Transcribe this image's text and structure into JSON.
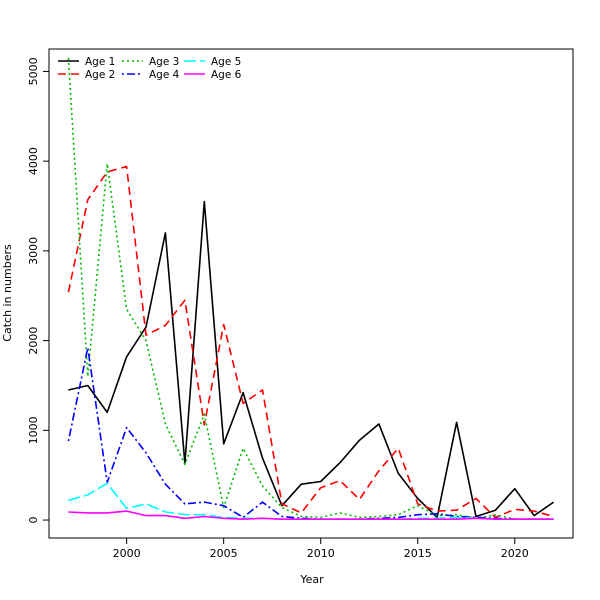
{
  "chart_data": {
    "type": "line",
    "title": "",
    "xlabel": "Year",
    "ylabel": "Catch in numbers",
    "xlim": [
      1996,
      2023
    ],
    "ylim": [
      -200,
      5250
    ],
    "xticks": [
      2000,
      2005,
      2010,
      2015,
      2020
    ],
    "yticks": [
      0,
      1000,
      2000,
      3000,
      4000,
      5000
    ],
    "grid": false,
    "legend_position": "top-left",
    "x": [
      1997,
      1998,
      1999,
      2000,
      2001,
      2002,
      2003,
      2004,
      2005,
      2006,
      2007,
      2008,
      2009,
      2010,
      2011,
      2012,
      2013,
      2014,
      2015,
      2016,
      2017,
      2018,
      2019,
      2020,
      2021,
      2022
    ],
    "series": [
      {
        "name": "Age 1",
        "color": "#000000",
        "dash": "solid",
        "values": [
          1450,
          1500,
          1200,
          1820,
          2150,
          3200,
          630,
          3550,
          850,
          1420,
          690,
          160,
          400,
          430,
          640,
          890,
          1070,
          520,
          240,
          30,
          1090,
          40,
          110,
          350,
          50,
          200
        ]
      },
      {
        "name": "Age 2",
        "color": "#ff0000",
        "dash": "dashed",
        "values": [
          2540,
          3570,
          3880,
          3940,
          2060,
          2170,
          2450,
          1060,
          2180,
          1300,
          1450,
          180,
          80,
          360,
          440,
          230,
          550,
          800,
          180,
          100,
          110,
          240,
          30,
          120,
          100,
          40
        ]
      },
      {
        "name": "Age 3",
        "color": "#00bb00",
        "dash": "dotted",
        "values": [
          5150,
          1600,
          3970,
          2350,
          2000,
          1070,
          620,
          1180,
          140,
          800,
          380,
          140,
          40,
          30,
          80,
          30,
          40,
          60,
          160,
          50,
          60,
          20,
          60,
          10,
          10,
          10
        ]
      },
      {
        "name": "Age 4",
        "color": "#0000ff",
        "dash": "dotdash",
        "values": [
          880,
          1920,
          420,
          1030,
          750,
          400,
          180,
          200,
          160,
          30,
          200,
          40,
          20,
          10,
          10,
          10,
          20,
          30,
          60,
          70,
          40,
          30,
          20,
          10,
          10,
          10
        ]
      },
      {
        "name": "Age 5",
        "color": "#00ffff",
        "dash": "longdash",
        "values": [
          220,
          280,
          410,
          130,
          180,
          90,
          60,
          60,
          30,
          20,
          20,
          10,
          10,
          10,
          10,
          10,
          10,
          10,
          20,
          20,
          30,
          20,
          10,
          10,
          10,
          10
        ]
      },
      {
        "name": "Age 6",
        "color": "#ff00ff",
        "dash": "solid",
        "values": [
          90,
          80,
          80,
          100,
          50,
          50,
          20,
          40,
          20,
          10,
          20,
          10,
          10,
          10,
          10,
          10,
          10,
          10,
          10,
          10,
          10,
          20,
          10,
          10,
          10,
          10
        ]
      }
    ]
  }
}
